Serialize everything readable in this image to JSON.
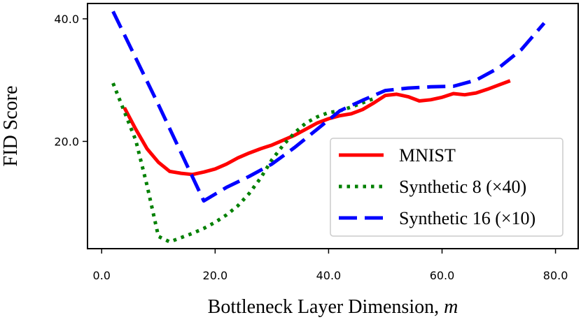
{
  "chart_data": {
    "type": "line",
    "xlabel": "Bottleneck Layer Dimension, ",
    "xlabel_var": "m",
    "ylabel": "FID Score",
    "xlim": [
      -2.5,
      84
    ],
    "ylim": [
      2.5,
      42.5
    ],
    "xticks": [
      0,
      20,
      40,
      60,
      80
    ],
    "xtick_labels": [
      "0.0",
      "20.0",
      "40.0",
      "60.0",
      "80.0"
    ],
    "yticks": [
      20,
      40
    ],
    "ytick_labels": [
      "20.0",
      "40.0"
    ],
    "legend_position": "lower-right",
    "series": [
      {
        "name": "MNIST",
        "color": "#ff0000",
        "dash": "solid",
        "x": [
          4,
          6,
          8,
          10,
          12,
          14,
          16,
          18,
          20,
          22,
          24,
          26,
          28,
          30,
          32,
          34,
          36,
          38,
          40,
          42,
          44,
          46,
          48,
          50,
          52,
          54,
          56,
          58,
          60,
          62,
          64,
          66,
          68,
          70,
          72
        ],
        "y": [
          25.5,
          22.0,
          18.8,
          16.6,
          15.1,
          14.8,
          14.6,
          15.0,
          15.5,
          16.3,
          17.3,
          18.1,
          18.8,
          19.4,
          20.2,
          21.0,
          22.0,
          23.0,
          23.7,
          24.2,
          24.5,
          25.2,
          26.3,
          27.5,
          27.7,
          27.3,
          26.6,
          26.8,
          27.2,
          27.8,
          27.6,
          27.9,
          28.5,
          29.2,
          29.9
        ]
      },
      {
        "name": "Synthetic 8 (×40)",
        "color": "#008000",
        "dash": "dotted",
        "x": [
          2,
          6,
          8,
          10,
          12,
          14,
          16,
          18,
          20,
          22,
          24,
          26,
          28,
          30,
          32,
          34,
          36,
          38,
          40,
          42,
          44,
          46,
          48
        ],
        "y": [
          29.5,
          20.2,
          12.8,
          4.5,
          3.6,
          4.3,
          5.0,
          5.8,
          6.8,
          8.0,
          9.5,
          11.5,
          14.0,
          17.0,
          19.4,
          21.4,
          23.0,
          24.0,
          24.7,
          25.0,
          25.6,
          26.3,
          27.0
        ]
      },
      {
        "name": "Synthetic 16 (×10)",
        "color": "#0000ff",
        "dash": "dashed",
        "x": [
          2,
          10,
          18,
          22,
          26,
          30,
          34,
          38,
          42,
          46,
          50,
          54,
          58,
          62,
          66,
          70,
          74,
          78
        ],
        "y": [
          41.2,
          26.0,
          10.3,
          12.5,
          14.3,
          16.3,
          19.0,
          22.0,
          25.0,
          26.7,
          28.3,
          28.7,
          28.9,
          29.0,
          30.0,
          32.0,
          35.0,
          39.3
        ]
      }
    ]
  }
}
